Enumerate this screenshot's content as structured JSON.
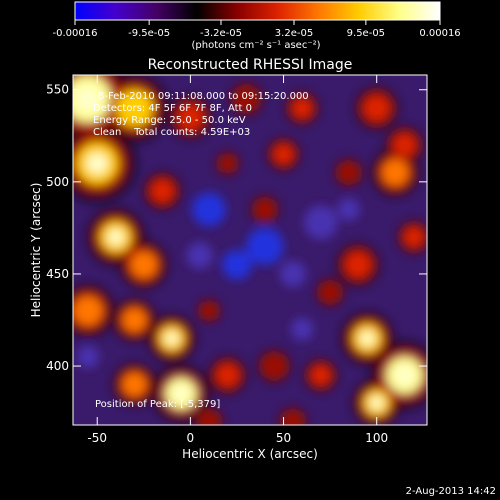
{
  "colorbar": {
    "tick_labels": [
      "-0.00016",
      "-9.5e-05",
      "-3.2e-05",
      "3.2e-05",
      "9.5e-05",
      "0.00016"
    ],
    "tick_values": [
      -0.00016,
      -9.5e-05,
      -3.2e-05,
      3.2e-05,
      9.5e-05,
      0.00016
    ],
    "range": [
      -0.00016,
      0.00016
    ],
    "units_label": "(photons cm⁻² s⁻¹ asec⁻²)",
    "colors": [
      "#0000ff",
      "#4400cc",
      "#440066",
      "#000000",
      "#880000",
      "#dd2200",
      "#ff7700",
      "#ffcc00",
      "#ffff88",
      "#ffffff"
    ]
  },
  "chart_data": {
    "type": "heatmap",
    "title": "Reconstructed RHESSI Image",
    "xlabel": "Heliocentric X (arcsec)",
    "ylabel": "Heliocentric Y (arcsec)",
    "xlim": [
      -63,
      127
    ],
    "ylim": [
      368,
      558
    ],
    "xticks": [
      -50,
      0,
      50,
      100
    ],
    "yticks": [
      400,
      450,
      500,
      550
    ],
    "annotations": {
      "time_range": "8-Feb-2010 09:11:08.000 to 09:15:20.000",
      "detectors": "Detectors: 4F 5F 6F 7F 8F, Att 0",
      "energy": "Energy Range: 25.0 - 50.0 keV",
      "clean": "Clean    Total counts: 4.59E+03",
      "position": "Position of Peak: [-5,379]"
    },
    "blobs": [
      {
        "x": -55,
        "y": 545,
        "r": 18,
        "v": 1.0
      },
      {
        "x": -30,
        "y": 540,
        "r": 14,
        "v": 0.8
      },
      {
        "x": -50,
        "y": 510,
        "r": 16,
        "v": 0.9
      },
      {
        "x": -40,
        "y": 470,
        "r": 12,
        "v": 0.85
      },
      {
        "x": -25,
        "y": 455,
        "r": 10,
        "v": 0.7
      },
      {
        "x": -15,
        "y": 495,
        "r": 8,
        "v": 0.6
      },
      {
        "x": 0,
        "y": 535,
        "r": 9,
        "v": 0.55
      },
      {
        "x": 30,
        "y": 545,
        "r": 7,
        "v": 0.45
      },
      {
        "x": 60,
        "y": 540,
        "r": 7,
        "v": 0.5
      },
      {
        "x": 100,
        "y": 540,
        "r": 9,
        "v": 0.55
      },
      {
        "x": 115,
        "y": 520,
        "r": 8,
        "v": 0.6
      },
      {
        "x": 110,
        "y": 505,
        "r": 10,
        "v": 0.75
      },
      {
        "x": 40,
        "y": 485,
        "r": 6,
        "v": 0.45
      },
      {
        "x": 50,
        "y": 515,
        "r": 7,
        "v": 0.5
      },
      {
        "x": 85,
        "y": 505,
        "r": 6,
        "v": 0.45
      },
      {
        "x": 90,
        "y": 455,
        "r": 9,
        "v": 0.6
      },
      {
        "x": 120,
        "y": 470,
        "r": 7,
        "v": 0.5
      },
      {
        "x": 75,
        "y": 440,
        "r": 6,
        "v": 0.4
      },
      {
        "x": -55,
        "y": 430,
        "r": 11,
        "v": 0.75
      },
      {
        "x": -30,
        "y": 425,
        "r": 9,
        "v": 0.7
      },
      {
        "x": -10,
        "y": 415,
        "r": 10,
        "v": 0.85
      },
      {
        "x": -5,
        "y": 385,
        "r": 12,
        "v": 1.0
      },
      {
        "x": -30,
        "y": 390,
        "r": 9,
        "v": 0.75
      },
      {
        "x": 20,
        "y": 395,
        "r": 8,
        "v": 0.6
      },
      {
        "x": 45,
        "y": 400,
        "r": 7,
        "v": 0.45
      },
      {
        "x": 70,
        "y": 395,
        "r": 7,
        "v": 0.5
      },
      {
        "x": 95,
        "y": 415,
        "r": 11,
        "v": 0.85
      },
      {
        "x": 115,
        "y": 395,
        "r": 14,
        "v": 1.0
      },
      {
        "x": 100,
        "y": 380,
        "r": 10,
        "v": 0.85
      },
      {
        "x": 55,
        "y": 370,
        "r": 6,
        "v": 0.45
      },
      {
        "x": 10,
        "y": 370,
        "r": 6,
        "v": 0.45
      },
      {
        "x": 10,
        "y": 430,
        "r": 5,
        "v": 0.35
      },
      {
        "x": 20,
        "y": 510,
        "r": 5,
        "v": 0.35
      }
    ],
    "negative_blobs": [
      {
        "x": 10,
        "y": 485,
        "r": 9,
        "v": -0.7
      },
      {
        "x": 40,
        "y": 465,
        "r": 10,
        "v": -0.75
      },
      {
        "x": 70,
        "y": 478,
        "r": 9,
        "v": -0.6
      },
      {
        "x": 25,
        "y": 455,
        "r": 8,
        "v": -0.65
      },
      {
        "x": 55,
        "y": 450,
        "r": 7,
        "v": -0.55
      },
      {
        "x": 5,
        "y": 460,
        "r": 7,
        "v": -0.5
      },
      {
        "x": -55,
        "y": 405,
        "r": 6,
        "v": -0.5
      },
      {
        "x": 60,
        "y": 420,
        "r": 6,
        "v": -0.45
      },
      {
        "x": 85,
        "y": 485,
        "r": 6,
        "v": -0.5
      }
    ]
  },
  "timestamp": "2-Aug-2013 14:42"
}
